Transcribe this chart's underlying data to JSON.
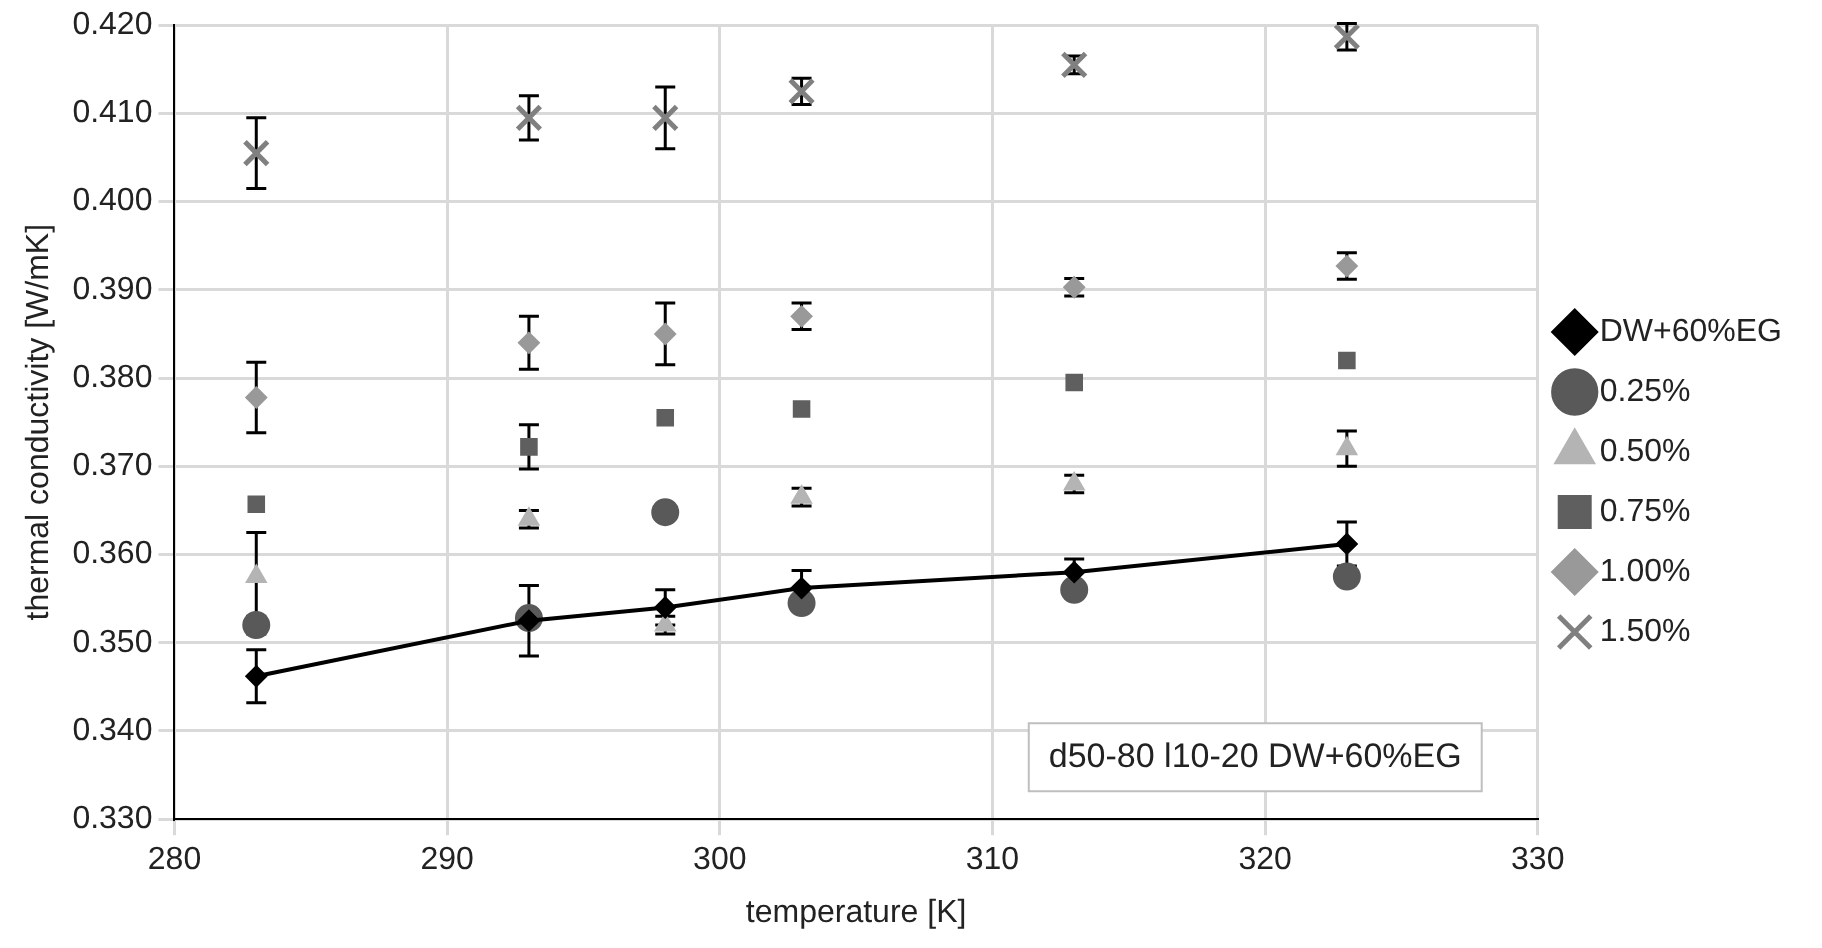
{
  "chart_data": {
    "type": "scatter",
    "xlabel": "temperature [K]",
    "ylabel": "thermal conductivity [W/mK]",
    "x": [
      283,
      293,
      298,
      303,
      313,
      323
    ],
    "series": [
      {
        "name": "DW+60%EG",
        "type": "line",
        "color": "#000000",
        "marker": "diamond",
        "values": [
          0.3462,
          0.3525,
          0.354,
          0.3562,
          0.358,
          0.3612
        ],
        "errors": [
          0.003,
          0.004,
          0.002,
          0.002,
          0.0015,
          0.0025
        ]
      },
      {
        "name": "0.25%",
        "color": "#595959",
        "marker": "circle",
        "values": [
          0.352,
          0.3528,
          0.3648,
          0.3545,
          0.356,
          0.3575
        ],
        "errors": [
          0.001,
          null,
          null,
          null,
          null,
          null
        ]
      },
      {
        "name": "0.50%",
        "color": "#b4b4b4",
        "marker": "triangle",
        "values": [
          0.3575,
          0.364,
          0.352,
          0.3665,
          0.368,
          0.372
        ],
        "errors": [
          0.005,
          0.001,
          0.001,
          0.001,
          0.001,
          0.002
        ]
      },
      {
        "name": "0.75%",
        "color": "#5f5f5f",
        "marker": "square",
        "values": [
          0.3657,
          0.3722,
          0.3755,
          0.3765,
          0.3795,
          0.382
        ],
        "errors": [
          null,
          0.0025,
          null,
          null,
          null,
          null
        ]
      },
      {
        "name": "1.00%",
        "color": "#999999",
        "marker": "diamond",
        "values": [
          0.3778,
          0.384,
          0.385,
          0.387,
          0.3903,
          0.3927
        ],
        "errors": [
          0.004,
          0.003,
          0.0035,
          0.0015,
          0.001,
          0.0015
        ]
      },
      {
        "name": "1.50%",
        "color": "#808080",
        "marker": "cross",
        "values": [
          0.4055,
          0.4095,
          0.4095,
          0.4125,
          0.4155,
          0.4187
        ],
        "errors": [
          0.004,
          0.0025,
          0.0035,
          0.0015,
          0.001,
          0.0015
        ]
      }
    ],
    "xlim": [
      280,
      330
    ],
    "xticks": [
      280,
      290,
      300,
      310,
      320,
      330
    ],
    "ylim": [
      0.33,
      0.42
    ],
    "yticks": [
      {
        "value": 0.33,
        "label": "0.330"
      },
      {
        "value": 0.34,
        "label": "0.340"
      },
      {
        "value": 0.35,
        "label": "0.350"
      },
      {
        "value": 0.36,
        "label": "0.360"
      },
      {
        "value": 0.37,
        "label": "0.370"
      },
      {
        "value": 0.38,
        "label": "0.380"
      },
      {
        "value": 0.39,
        "label": "0.390"
      },
      {
        "value": 0.4,
        "label": "0.400"
      },
      {
        "value": 0.41,
        "label": "0.410"
      },
      {
        "value": 0.42,
        "label": "0.420"
      }
    ],
    "grid": true,
    "legend": "right",
    "annotations": [
      "d50-80 l10-20 DW+60%EG"
    ]
  }
}
